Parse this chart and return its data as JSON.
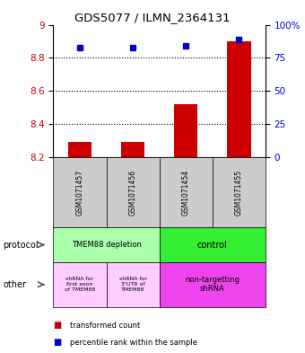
{
  "title": "GDS5077 / ILMN_2364131",
  "samples": [
    "GSM1071457",
    "GSM1071456",
    "GSM1071454",
    "GSM1071455"
  ],
  "bar_values": [
    8.29,
    8.29,
    8.52,
    8.9
  ],
  "blue_values": [
    8.86,
    8.86,
    8.87,
    8.91
  ],
  "ylim_left": [
    8.2,
    9.0
  ],
  "ylim_right": [
    0,
    100
  ],
  "yticks_left": [
    8.2,
    8.4,
    8.6,
    8.8,
    9.0
  ],
  "ytick_labels_left": [
    "8.2",
    "8.4",
    "8.6",
    "8.8",
    "9"
  ],
  "yticks_right": [
    0,
    25,
    50,
    75,
    100
  ],
  "ytick_labels_right": [
    "0",
    "25",
    "50",
    "75",
    "100%"
  ],
  "grid_values": [
    8.4,
    8.6,
    8.8
  ],
  "bar_color": "#cc0000",
  "blue_color": "#0000cc",
  "bar_bottom": 8.2,
  "sample_bg_color": "#cccccc",
  "proto_depletion_color": "#aaffaa",
  "proto_control_color": "#33ee33",
  "other_light_color": "#ffccff",
  "other_bright_color": "#ee44ee",
  "legend_red_label": "transformed count",
  "legend_blue_label": "percentile rank within the sample"
}
